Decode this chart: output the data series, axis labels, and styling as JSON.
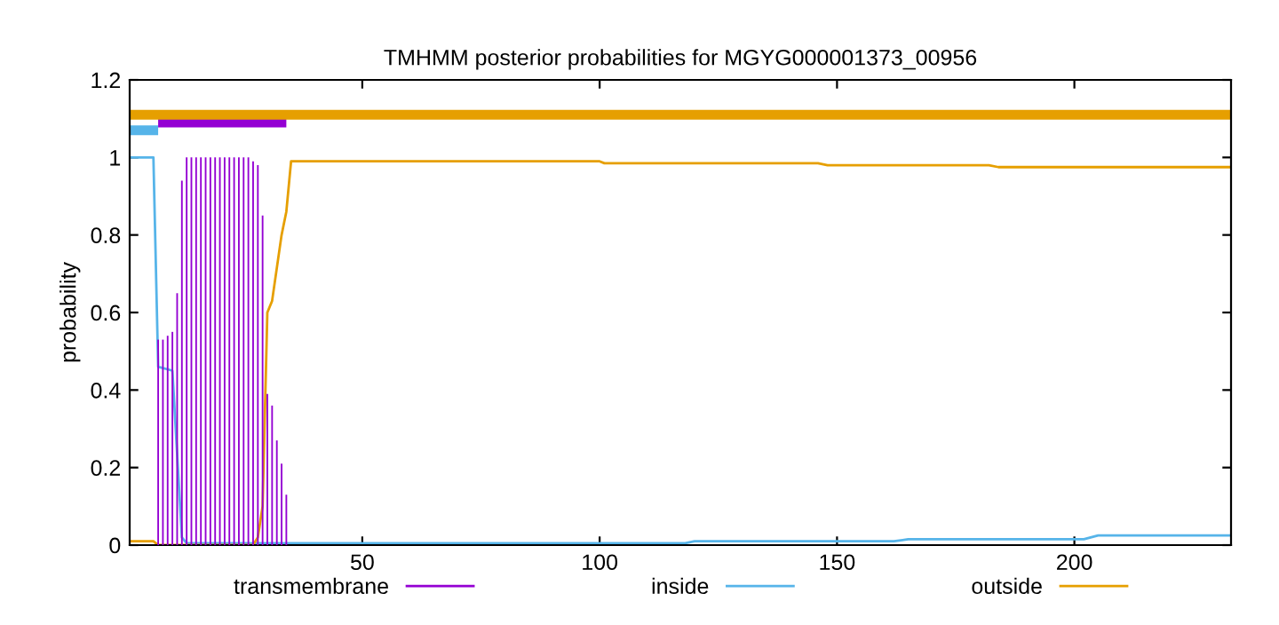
{
  "chart_data": {
    "type": "line",
    "title": "TMHMM posterior probabilities for MGYG000001373_00956",
    "xlabel": null,
    "ylabel": "probability",
    "series": [
      {
        "name": "transmembrane",
        "type": "bar",
        "color": "#9400d3",
        "x": [
          7,
          8,
          9,
          10,
          11,
          12,
          13,
          14,
          15,
          16,
          17,
          18,
          19,
          20,
          21,
          22,
          23,
          24,
          25,
          26,
          27,
          28,
          29,
          30,
          31,
          32,
          33,
          34
        ],
        "values": [
          0.53,
          0.53,
          0.54,
          0.55,
          0.65,
          0.94,
          1.0,
          1.0,
          1.0,
          1.0,
          1.0,
          1.0,
          1.0,
          1.0,
          1.0,
          1.0,
          1.0,
          1.0,
          1.0,
          1.0,
          0.99,
          0.98,
          0.85,
          0.39,
          0.36,
          0.27,
          0.21,
          0.13
        ]
      },
      {
        "name": "inside",
        "color": "#56b4e9",
        "x": [
          1,
          6,
          7,
          10,
          12,
          13,
          60,
          118,
          120,
          162,
          165,
          202,
          205,
          233
        ],
        "values": [
          1,
          1,
          0.46,
          0.45,
          0.02,
          0.005,
          0.005,
          0.005,
          0.01,
          0.01,
          0.015,
          0.015,
          0.025,
          0.025
        ]
      },
      {
        "name": "outside",
        "color": "#e69f00",
        "x": [
          1,
          6,
          7,
          27,
          28,
          29,
          30,
          31,
          33,
          34,
          35,
          100,
          101,
          146,
          148,
          182,
          184,
          233
        ],
        "values": [
          0.01,
          0.01,
          0,
          0,
          0.02,
          0.1,
          0.6,
          0.63,
          0.8,
          0.86,
          0.99,
          0.99,
          0.985,
          0.985,
          0.98,
          0.98,
          0.975,
          0.975
        ]
      },
      {
        "color": "#56b4e9",
        "x": [
          1,
          7
        ],
        "values": [
          1.07,
          1.07
        ]
      },
      {
        "color": "#9400d3",
        "x": [
          7,
          34
        ],
        "values": [
          1.09,
          1.09
        ]
      },
      {
        "color": "#e69f00",
        "x": [
          1,
          233
        ],
        "values": [
          1.11,
          1.11
        ]
      }
    ],
    "xlim": [
      1,
      233
    ],
    "xticks": [
      50,
      100,
      150,
      200
    ],
    "ylim": [
      0,
      1.2
    ],
    "yticks": [
      0,
      0.2,
      0.4,
      0.6,
      0.8,
      1,
      1.2
    ],
    "legend": "bottom",
    "grid": false
  }
}
